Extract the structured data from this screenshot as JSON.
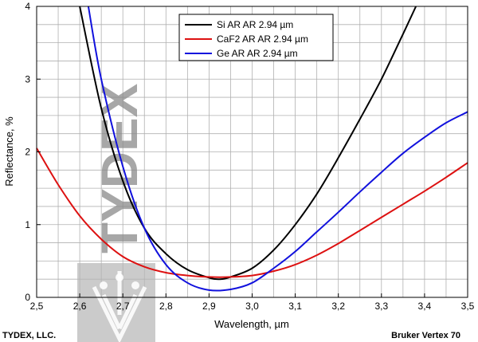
{
  "chart_data": {
    "type": "line",
    "xlabel": "Wavelength, µm",
    "ylabel": "Reflectance, %",
    "xlim": [
      2.5,
      3.5
    ],
    "ylim": [
      0,
      4
    ],
    "x_ticks": [
      "2,5",
      "2,6",
      "2,7",
      "2,8",
      "2,9",
      "3,0",
      "3,1",
      "3,2",
      "3,3",
      "3,4",
      "3,5"
    ],
    "y_ticks": [
      "0",
      "1",
      "2",
      "3",
      "4"
    ],
    "grid": true,
    "legend_position": "top-center",
    "series": [
      {
        "name": "Si AR AR 2.94 µm",
        "color": "#000000",
        "x": [
          2.6,
          2.65,
          2.7,
          2.75,
          2.8,
          2.85,
          2.9,
          2.925,
          2.95,
          3.0,
          3.05,
          3.1,
          3.15,
          3.2,
          3.25,
          3.3,
          3.35,
          3.38
        ],
        "y": [
          4.0,
          2.6,
          1.6,
          0.95,
          0.6,
          0.38,
          0.27,
          0.25,
          0.28,
          0.4,
          0.65,
          1.0,
          1.42,
          1.92,
          2.45,
          3.0,
          3.62,
          4.0
        ]
      },
      {
        "name": "CaF2 AR AR 2.94 µm",
        "color": "#dd1111",
        "x": [
          2.5,
          2.55,
          2.6,
          2.65,
          2.7,
          2.75,
          2.8,
          2.85,
          2.9,
          2.95,
          3.0,
          3.05,
          3.1,
          3.15,
          3.2,
          3.25,
          3.3,
          3.35,
          3.4,
          3.45,
          3.5
        ],
        "y": [
          2.05,
          1.55,
          1.12,
          0.8,
          0.56,
          0.42,
          0.34,
          0.3,
          0.28,
          0.28,
          0.3,
          0.36,
          0.45,
          0.58,
          0.74,
          0.92,
          1.1,
          1.28,
          1.46,
          1.65,
          1.85
        ]
      },
      {
        "name": "Ge AR AR 2.94 µm",
        "color": "#1111dd",
        "x": [
          2.62,
          2.65,
          2.7,
          2.75,
          2.8,
          2.85,
          2.9,
          2.95,
          3.0,
          3.05,
          3.1,
          3.15,
          3.2,
          3.25,
          3.3,
          3.35,
          3.4,
          3.45,
          3.5
        ],
        "y": [
          4.0,
          3.0,
          1.8,
          0.95,
          0.45,
          0.2,
          0.1,
          0.11,
          0.2,
          0.4,
          0.63,
          0.9,
          1.17,
          1.45,
          1.72,
          1.98,
          2.2,
          2.4,
          2.55
        ]
      }
    ]
  },
  "footer": {
    "left": "TYDEX, LLC.",
    "right": "Bruker Vertex 70"
  },
  "watermark": {
    "text": "TYDEX"
  }
}
